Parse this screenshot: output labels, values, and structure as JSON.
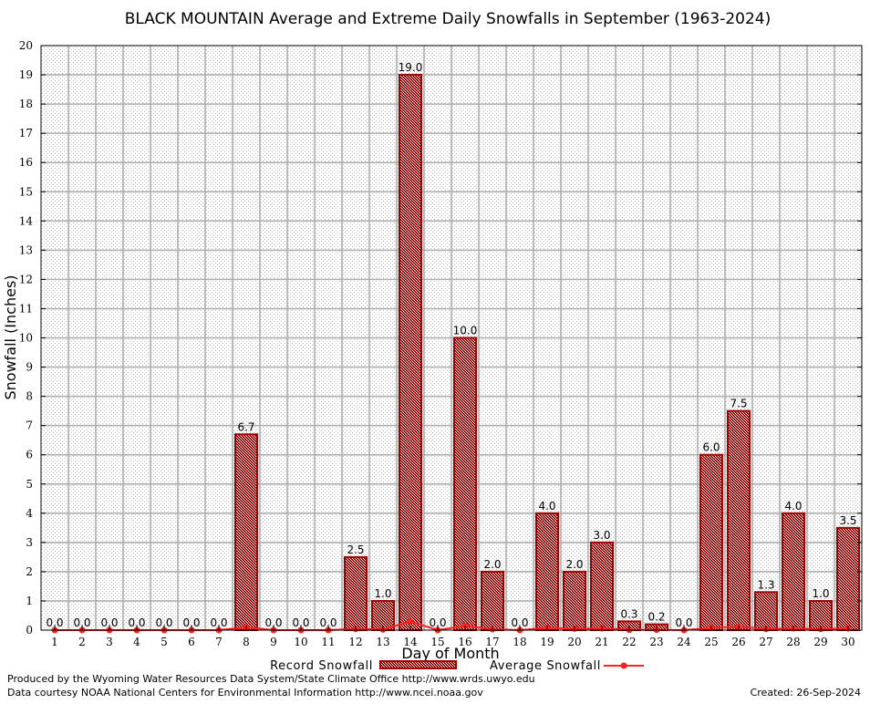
{
  "chart_data": {
    "type": "bar",
    "title": "BLACK MOUNTAIN Average and Extreme Daily Snowfalls in September (1963-2024)",
    "xlabel": "Day of Month",
    "ylabel": "Snowfall (Inches)",
    "ylim": [
      0,
      20
    ],
    "grid": true,
    "legend_position": "bottom",
    "categories": [
      "1",
      "2",
      "3",
      "4",
      "5",
      "6",
      "7",
      "8",
      "9",
      "10",
      "11",
      "12",
      "13",
      "14",
      "15",
      "16",
      "17",
      "18",
      "19",
      "20",
      "21",
      "22",
      "23",
      "24",
      "25",
      "26",
      "27",
      "28",
      "29",
      "30"
    ],
    "series": [
      {
        "name": "Record Snowfall",
        "type": "bar",
        "color": "#a00000",
        "values": [
          0.0,
          0.0,
          0.0,
          0.0,
          0.0,
          0.0,
          0.0,
          6.7,
          0.0,
          0.0,
          0.0,
          2.5,
          1.0,
          19.0,
          0.0,
          10.0,
          2.0,
          0.0,
          4.0,
          2.0,
          3.0,
          0.3,
          0.2,
          0.0,
          6.0,
          7.5,
          1.3,
          4.0,
          1.0,
          3.5
        ]
      },
      {
        "name": "Average Snowfall",
        "type": "line",
        "color": "#ff2020",
        "values": [
          0,
          0,
          0,
          0,
          0,
          0,
          0,
          0.1,
          0,
          0,
          0,
          0.04,
          0.02,
          0.3,
          0,
          0.15,
          0.03,
          0,
          0.08,
          0.05,
          0.06,
          0.01,
          0.01,
          0,
          0.08,
          0.12,
          0.04,
          0.06,
          0.04,
          0.06
        ]
      }
    ]
  },
  "footer": {
    "produced_by": "Produced by the Wyoming Water Resources Data System/State Climate Office http://www.wrds.uwyo.edu",
    "courtesy": "Data courtesy NOAA National Centers for Environmental Information http://www.ncei.noaa.gov",
    "created": "Created: 26-Sep-2024"
  }
}
